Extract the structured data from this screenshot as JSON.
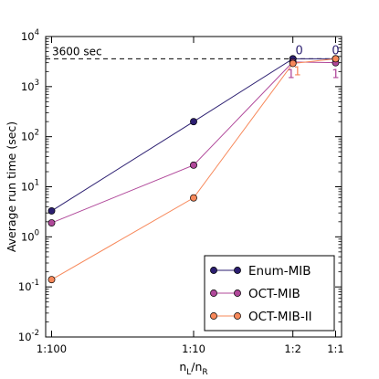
{
  "chart_data": {
    "type": "line",
    "title": "",
    "xlabel": "nL/nR",
    "xlabel_parts": {
      "main_l": "n",
      "sub_l": "L",
      "slash": "/",
      "main_r": "n",
      "sub_r": "R"
    },
    "ylabel": "Average run time (sec)",
    "yscale": "log",
    "ylim": [
      0.01,
      10000
    ],
    "yticks": [
      {
        "base": "10",
        "exp": "-2"
      },
      {
        "base": "10",
        "exp": "-1"
      },
      {
        "base": "10",
        "exp": "0"
      },
      {
        "base": "10",
        "exp": "1"
      },
      {
        "base": "10",
        "exp": "2"
      },
      {
        "base": "10",
        "exp": "3"
      },
      {
        "base": "10",
        "exp": "4"
      }
    ],
    "categories": [
      "1:100",
      "1:10",
      "1:2",
      "1:1"
    ],
    "x_ratio": [
      0.01,
      0.1,
      0.5,
      1.0
    ],
    "series": [
      {
        "name": "Enum-MIB",
        "color": "#2b1e70",
        "values": [
          3.3,
          200,
          3600,
          3600
        ]
      },
      {
        "name": "OCT-MIB",
        "color": "#b0489a",
        "values": [
          1.9,
          27,
          3100,
          3000
        ]
      },
      {
        "name": "OCT-MIB-II",
        "color": "#f7885a",
        "values": [
          0.14,
          6,
          2900,
          3600
        ]
      }
    ],
    "reference_line": {
      "value": 3600,
      "label": "3600 sec"
    },
    "annotations": [
      {
        "text": "0",
        "color": "#2b1e70",
        "category": "1:2"
      },
      {
        "text": "0",
        "color": "#2b1e70",
        "category": "1:1"
      },
      {
        "text": "1",
        "color": "#b0489a",
        "category": "1:2"
      },
      {
        "text": "1",
        "color": "#f7885a",
        "category": "1:2"
      },
      {
        "text": "1",
        "color": "#b0489a",
        "category": "1:1"
      }
    ],
    "legend_position": "lower-right",
    "grid": false
  }
}
